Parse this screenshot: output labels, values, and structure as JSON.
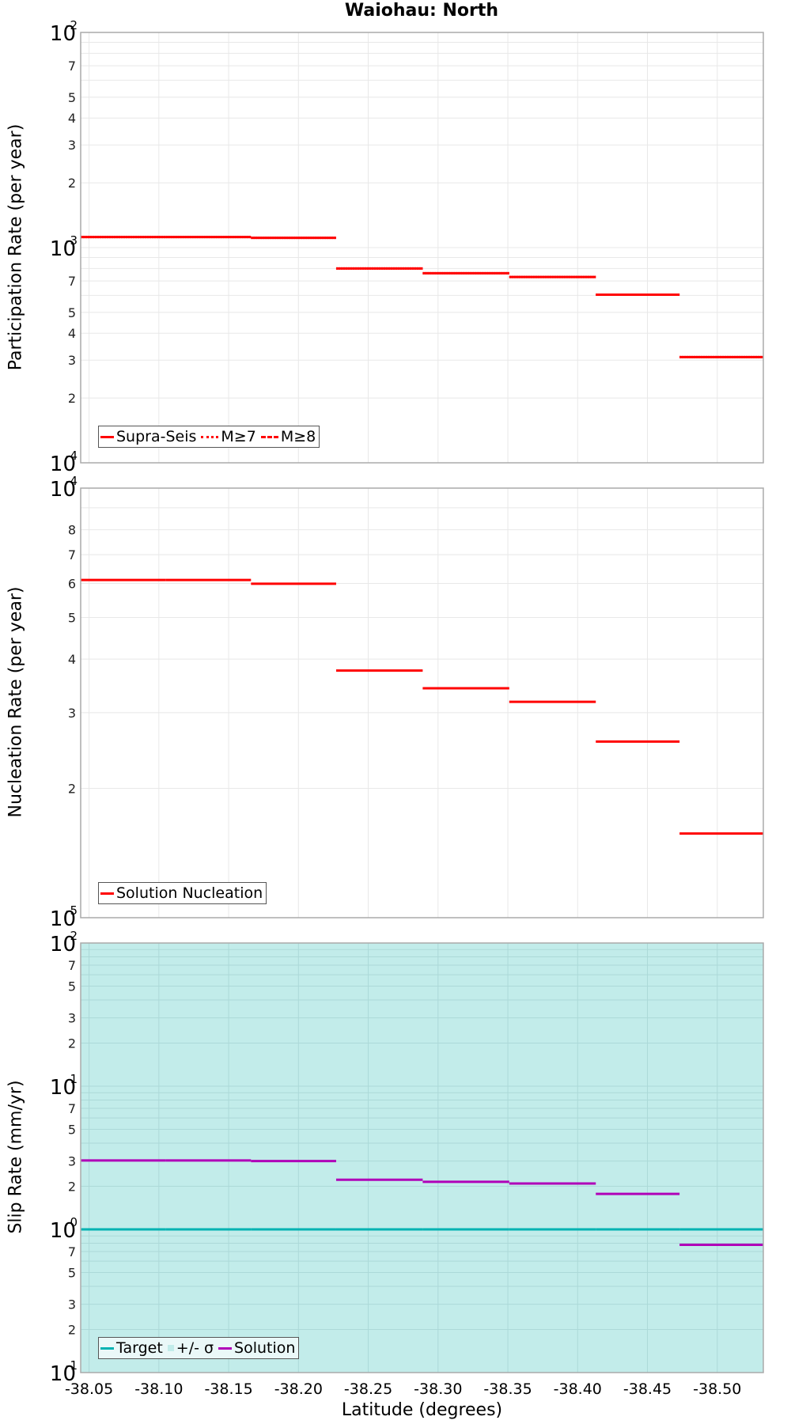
{
  "title": "Waiohau: North",
  "colors": {
    "solution_red": "#ff0000",
    "target_teal": "#00b2b2",
    "sigma_fill": "#c2ecea",
    "solution_purple": "#b000b8",
    "grid": "#e8e8e8",
    "frame": "#aaaaaa"
  },
  "panels": [
    {
      "ylabel": "Participation Rate (per year)",
      "legend": [
        {
          "label": "Supra-Seis",
          "style": "solid"
        },
        {
          "label": "M≥7",
          "style": "dotted"
        },
        {
          "label": "M≥8",
          "style": "dashdot"
        }
      ]
    },
    {
      "ylabel": "Nucleation Rate (per year)",
      "legend": [
        {
          "label": "Solution Nucleation",
          "style": "solid"
        }
      ]
    },
    {
      "ylabel": "Slip Rate (mm/yr)",
      "legend": [
        {
          "label": "Target",
          "style": "solid"
        },
        {
          "label": "+/- σ",
          "style": "square"
        },
        {
          "label": "Solution",
          "style": "solid"
        }
      ]
    }
  ],
  "xlabel": "Latitude (degrees)",
  "chart_data": [
    {
      "type": "line",
      "title": "Waiohau: North",
      "xlabel": "Latitude (degrees)",
      "ylabel": "Participation Rate (per year)",
      "yscale": "log",
      "ylim": [
        0.0001,
        0.01
      ],
      "xlim": [
        -38.044,
        -38.533
      ],
      "x_ticks": [
        "-38.05",
        "-38.10",
        "-38.15",
        "-38.20",
        "-38.25",
        "-38.30",
        "-38.35",
        "-38.40",
        "-38.45",
        "-38.50"
      ],
      "segment_bounds": [
        -38.044,
        -38.105,
        -38.166,
        -38.227,
        -38.289,
        -38.351,
        -38.413,
        -38.473,
        -38.533
      ],
      "series": [
        {
          "name": "Supra-Seis",
          "values": [
            0.00112,
            0.00112,
            0.00111,
            0.0008,
            0.00076,
            0.00073,
            0.000604,
            0.00031
          ]
        },
        {
          "name": "M≥7",
          "values": [
            0.00112,
            0.00112,
            0.00111,
            0.0008,
            0.00076,
            0.00073,
            0.000604,
            0.00031
          ]
        },
        {
          "name": "M≥8",
          "values": []
        }
      ],
      "legend_position": "lower-left",
      "grid": true
    },
    {
      "type": "line",
      "xlabel": "Latitude (degrees)",
      "ylabel": "Nucleation Rate (per year)",
      "yscale": "log",
      "ylim": [
        1e-05,
        0.0001
      ],
      "segment_bounds": [
        -38.044,
        -38.105,
        -38.166,
        -38.227,
        -38.289,
        -38.351,
        -38.413,
        -38.473,
        -38.533
      ],
      "series": [
        {
          "name": "Solution Nucleation",
          "values": [
            6.11e-05,
            6.11e-05,
            5.99e-05,
            3.76e-05,
            3.42e-05,
            3.18e-05,
            2.57e-05,
            1.57e-05
          ]
        }
      ],
      "legend_position": "lower-left",
      "grid": true
    },
    {
      "type": "line",
      "xlabel": "Latitude (degrees)",
      "ylabel": "Slip Rate (mm/yr)",
      "yscale": "log",
      "ylim": [
        0.1,
        100
      ],
      "segment_bounds": [
        -38.044,
        -38.105,
        -38.166,
        -38.227,
        -38.289,
        -38.351,
        -38.413,
        -38.473,
        -38.533
      ],
      "series": [
        {
          "name": "Target",
          "values": [
            1.0,
            1.0,
            1.0,
            1.0,
            1.0,
            1.0,
            1.0,
            1.0
          ]
        },
        {
          "name": "+/- σ",
          "range": [
            0.1,
            100
          ]
        },
        {
          "name": "Solution",
          "values": [
            3.03,
            3.03,
            3.0,
            2.22,
            2.15,
            2.09,
            1.77,
            0.78
          ]
        }
      ],
      "legend_position": "lower-left",
      "grid": true
    }
  ]
}
